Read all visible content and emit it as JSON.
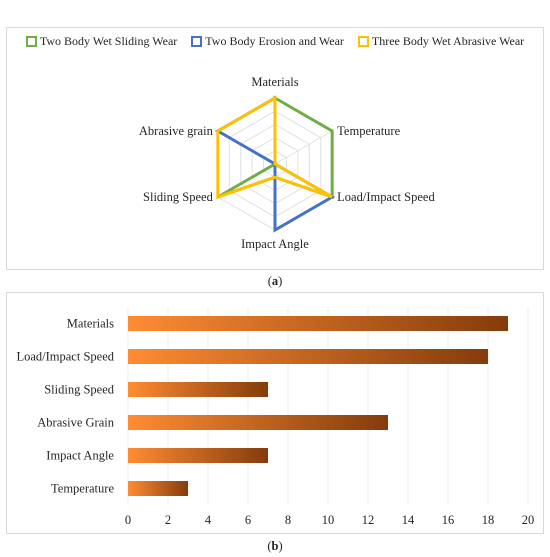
{
  "captions": {
    "a": "a",
    "b": "b"
  },
  "chart_data": [
    {
      "type": "radar",
      "title": "",
      "axes": [
        "Materials",
        "Temperature",
        "Load/Impact Speed",
        "Impact Angle",
        "Sliding Speed",
        "Abrasive grain"
      ],
      "rmax": 5,
      "grid": true,
      "legend_position": "top",
      "series": [
        {
          "name": "Two Body Wet Sliding Wear",
          "color": "#70AD47",
          "values": [
            5,
            5,
            5,
            1,
            5,
            0
          ]
        },
        {
          "name": "Two Body Erosion and Wear",
          "color": "#4472C4",
          "values": [
            5,
            0,
            5,
            5,
            0,
            5
          ]
        },
        {
          "name": "Three Body Wet Abrasive Wear",
          "color": "#FFC000",
          "values": [
            5,
            0,
            5,
            1,
            5,
            5
          ]
        }
      ]
    },
    {
      "type": "bar",
      "orientation": "horizontal",
      "title": "",
      "categories": [
        "Materials",
        "Load/Impact Speed",
        "Sliding Speed",
        "Abrasive Grain",
        "Impact Angle",
        "Temperature"
      ],
      "values": [
        19,
        18,
        7,
        13,
        7,
        3
      ],
      "xlim": [
        0,
        20
      ],
      "xticks": [
        0,
        2,
        4,
        6,
        8,
        10,
        12,
        14,
        16,
        18,
        20
      ],
      "grid": true,
      "colors": {
        "start": "#FF8C33",
        "end": "#843C0C"
      }
    }
  ]
}
